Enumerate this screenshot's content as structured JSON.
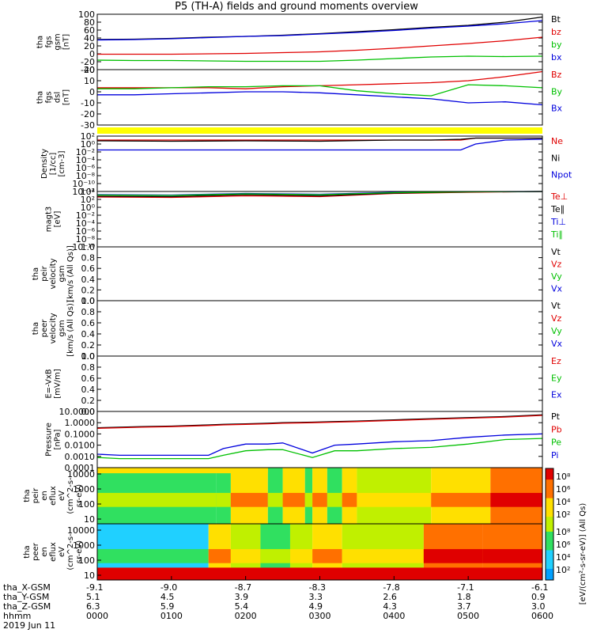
{
  "title": "P5 (TH-A) fields and ground moments overview",
  "colors": {
    "black": "#000000",
    "red": "#e00000",
    "green": "#00c000",
    "blue": "#0000dd",
    "yellow": "#ffff00"
  },
  "chart_data": [
    {
      "id": "fgs_gsm",
      "type": "line",
      "ylabel": [
        "tha",
        "fgs",
        "gsm",
        "[nT]"
      ],
      "ylim": [
        -40,
        100
      ],
      "yticks": [
        "100",
        "80",
        "60",
        "40",
        "20",
        "0",
        "-20",
        "-40"
      ],
      "legend": [
        {
          "name": "Bt",
          "color": "black"
        },
        {
          "name": "bz",
          "color": "red"
        },
        {
          "name": "by",
          "color": "green"
        },
        {
          "name": "bx",
          "color": "blue"
        }
      ],
      "x": [
        0,
        0.5,
        1,
        1.5,
        2,
        2.5,
        3,
        3.5,
        4,
        4.5,
        5,
        5.5,
        6
      ],
      "series": [
        {
          "name": "Bt",
          "color": "black",
          "values": [
            36,
            37,
            39,
            42,
            44,
            47,
            51,
            56,
            61,
            67,
            72,
            80,
            93
          ]
        },
        {
          "name": "bz",
          "color": "red",
          "values": [
            -1,
            -1,
            -1,
            0,
            1,
            3,
            5,
            9,
            14,
            20,
            26,
            33,
            42
          ]
        },
        {
          "name": "by",
          "color": "green",
          "values": [
            -16,
            -17,
            -17,
            -18,
            -19,
            -19,
            -19,
            -16,
            -12,
            -8,
            -6,
            -7,
            -6
          ]
        },
        {
          "name": "bx",
          "color": "blue",
          "values": [
            35,
            36,
            38,
            41,
            44,
            46,
            50,
            54,
            59,
            65,
            70,
            76,
            84
          ]
        }
      ]
    },
    {
      "id": "fgs_dsl",
      "type": "line",
      "ylabel": [
        "tha",
        "fgs",
        "dsl",
        "[nT]"
      ],
      "ylim": [
        -35,
        20
      ],
      "yticks": [
        "20",
        "10",
        "0",
        "-10",
        "-20",
        "-30"
      ],
      "legend": [
        {
          "name": "Bz",
          "color": "red"
        },
        {
          "name": "By",
          "color": "green"
        },
        {
          "name": "Bx",
          "color": "blue"
        }
      ],
      "x": [
        0,
        0.5,
        1,
        1.5,
        2,
        2.5,
        3,
        3.5,
        4,
        4.5,
        5,
        5.5,
        6
      ],
      "series": [
        {
          "name": "Bz",
          "color": "red",
          "values": [
            2,
            2,
            2,
            2,
            1,
            3,
            4,
            5,
            6,
            7,
            9,
            13,
            18
          ]
        },
        {
          "name": "By",
          "color": "green",
          "values": [
            1,
            1,
            2,
            3,
            3,
            4,
            4,
            -1,
            -4,
            -6,
            5,
            4,
            2
          ]
        },
        {
          "name": "Bx",
          "color": "blue",
          "values": [
            -5,
            -5,
            -4,
            -3,
            -2,
            -2,
            -3,
            -5,
            -7,
            -9,
            -13,
            -12,
            -15
          ]
        }
      ]
    },
    {
      "id": "density",
      "type": "line",
      "scale": "log",
      "ylabel": [
        "Density",
        "[1/cc]",
        "[cm-3]"
      ],
      "ylim": [
        -12,
        2
      ],
      "yticks": [
        "10²",
        "10⁰",
        "10⁻²",
        "10⁻⁴",
        "10⁻⁶",
        "10⁻⁸",
        "10⁻¹⁰",
        "10⁻¹²"
      ],
      "legend": [
        {
          "name": "Ne",
          "color": "red"
        },
        {
          "name": "Ni",
          "color": "black"
        },
        {
          "name": "Npot",
          "color": "blue"
        }
      ],
      "x": [
        0,
        1,
        2,
        3,
        4,
        4.5,
        4.9,
        5.1,
        5.5,
        6
      ],
      "series": [
        {
          "name": "Ne",
          "color": "red",
          "values": [
            1,
            1,
            1,
            1,
            1,
            1,
            1,
            1.5,
            1.5,
            1.5
          ]
        },
        {
          "name": "Ni",
          "color": "black",
          "values": [
            0.8,
            0.7,
            0.8,
            0.7,
            1,
            1,
            1.2,
            1.5,
            1.5,
            1.5
          ]
        },
        {
          "name": "Npot",
          "color": "blue",
          "values": [
            -1.5,
            -1.5,
            -1.5,
            -1.5,
            -1.5,
            -1.5,
            -1.5,
            0,
            1,
            1.2
          ]
        }
      ]
    },
    {
      "id": "temperature",
      "type": "line",
      "scale": "log",
      "ylabel": [
        "magt3",
        "[eV]"
      ],
      "ylim": [
        -10,
        4
      ],
      "yticks": [
        "10⁴",
        "10²",
        "10⁰",
        "10⁻²",
        "10⁻⁴",
        "10⁻⁶",
        "10⁻⁸",
        "10⁻¹⁰"
      ],
      "legend": [
        {
          "name": "Te⊥",
          "color": "red"
        },
        {
          "name": "Te∥",
          "color": "black"
        },
        {
          "name": "Ti⊥",
          "color": "blue"
        },
        {
          "name": "Ti∥",
          "color": "green"
        }
      ],
      "x": [
        0,
        1,
        2,
        3,
        4,
        5,
        6
      ],
      "series": [
        {
          "name": "Te⊥",
          "color": "red",
          "values": [
            2.6,
            2.5,
            2.9,
            2.7,
            3.5,
            3.8,
            4
          ]
        },
        {
          "name": "Te∥",
          "color": "black",
          "values": [
            2.8,
            2.7,
            3.2,
            2.9,
            3.6,
            3.9,
            4
          ]
        },
        {
          "name": "Ti⊥",
          "color": "blue",
          "values": [
            3.2,
            3.1,
            3.5,
            3.3,
            3.8,
            3.95,
            4
          ]
        },
        {
          "name": "Ti∥",
          "color": "green",
          "values": [
            3.1,
            3,
            3.4,
            3.2,
            3.7,
            3.9,
            4
          ]
        }
      ]
    },
    {
      "id": "peir_velocity",
      "type": "line",
      "ylabel": [
        "tha",
        "peir",
        "velocity",
        "gsm",
        "[km/s (All Qs)]"
      ],
      "ylim": [
        0,
        1
      ],
      "yticks": [
        "1.0",
        "0.8",
        "0.6",
        "0.4",
        "0.2",
        "0.0"
      ],
      "legend": [
        {
          "name": "Vt",
          "color": "black"
        },
        {
          "name": "Vz",
          "color": "red"
        },
        {
          "name": "Vy",
          "color": "green"
        },
        {
          "name": "Vx",
          "color": "blue"
        }
      ],
      "series": []
    },
    {
      "id": "peer_velocity",
      "type": "line",
      "ylabel": [
        "tha",
        "peer",
        "velocity",
        "gsm",
        "[km/s (All Qs)]"
      ],
      "ylim": [
        0,
        1
      ],
      "yticks": [
        "1.0",
        "0.8",
        "0.6",
        "0.4",
        "0.2",
        "0.0"
      ],
      "legend": [
        {
          "name": "Vt",
          "color": "black"
        },
        {
          "name": "Vz",
          "color": "red"
        },
        {
          "name": "Vy",
          "color": "green"
        },
        {
          "name": "Vx",
          "color": "blue"
        }
      ],
      "series": []
    },
    {
      "id": "efield",
      "type": "line",
      "ylabel": [
        "E=-VxB",
        "[mV/m]"
      ],
      "ylim": [
        0,
        1
      ],
      "yticks": [
        "1.0",
        "0.8",
        "0.6",
        "0.4",
        "0.2",
        "0.0"
      ],
      "legend": [
        {
          "name": "Ez",
          "color": "red"
        },
        {
          "name": "Ey",
          "color": "green"
        },
        {
          "name": "Ex",
          "color": "blue"
        }
      ],
      "series": []
    },
    {
      "id": "pressure",
      "type": "line",
      "scale": "log",
      "ylabel": [
        "Pressure",
        "[nPa]"
      ],
      "ylim": [
        -4,
        1
      ],
      "yticks": [
        "10.0000",
        "1.0000",
        "0.1000",
        "0.0100",
        "0.0010",
        "0.0001"
      ],
      "legend": [
        {
          "name": "Pt",
          "color": "black"
        },
        {
          "name": "Pb",
          "color": "red"
        },
        {
          "name": "Pe",
          "color": "green"
        },
        {
          "name": "Pi",
          "color": "blue"
        }
      ],
      "x": [
        0,
        0.3,
        0.6,
        1,
        1.5,
        1.7,
        2,
        2.3,
        2.5,
        2.9,
        3.2,
        3.5,
        4,
        4.5,
        5,
        5.5,
        6
      ],
      "series": [
        {
          "name": "Pt",
          "color": "black",
          "values": [
            -0.45,
            -0.4,
            -0.35,
            -0.3,
            -0.2,
            -0.15,
            -0.1,
            -0.05,
            0,
            0.05,
            0.1,
            0.15,
            0.25,
            0.35,
            0.45,
            0.55,
            0.7
          ]
        },
        {
          "name": "Pb",
          "color": "red",
          "values": [
            -0.5,
            -0.45,
            -0.4,
            -0.35,
            -0.25,
            -0.2,
            -0.15,
            -0.1,
            -0.05,
            0,
            0.05,
            0.1,
            0.2,
            0.3,
            0.4,
            0.5,
            0.65
          ]
        },
        {
          "name": "Pe",
          "color": "green",
          "values": [
            -3.1,
            -3.2,
            -3.2,
            -3.2,
            -3.2,
            -2.9,
            -2.5,
            -2.4,
            -2.4,
            -3.1,
            -2.5,
            -2.5,
            -2.3,
            -2.2,
            -1.9,
            -1.5,
            -1.4
          ]
        },
        {
          "name": "Pi",
          "color": "blue",
          "values": [
            -2.8,
            -2.9,
            -2.9,
            -2.9,
            -2.9,
            -2.3,
            -1.9,
            -1.9,
            -1.8,
            -2.7,
            -2.0,
            -1.9,
            -1.7,
            -1.6,
            -1.3,
            -1.1,
            -1.0
          ]
        }
      ]
    },
    {
      "id": "peir_en_eflux",
      "type": "heatmap",
      "ylabel": [
        "tha",
        "peir",
        "en",
        "eflux",
        "eV",
        "(cm^2-s-",
        "sr-eV)"
      ],
      "yticks": [
        "10000",
        "1000",
        "100",
        "10"
      ],
      "x_edges": [
        0,
        1.6,
        1.8,
        2.3,
        2.5,
        2.8,
        2.9,
        3.1,
        3.3,
        3.5,
        4.5,
        5.3,
        6
      ],
      "levels": [
        2,
        2,
        4,
        2,
        4,
        2,
        4,
        2,
        4,
        3,
        4,
        5
      ]
    },
    {
      "id": "peer_en_eflux",
      "type": "heatmap",
      "ylabel": [
        "tha",
        "peer",
        "en",
        "eflux",
        "eV",
        "(cm^2-s-",
        "sr-eV)"
      ],
      "yticks": [
        "10000",
        "1000",
        "100",
        "10"
      ],
      "x_edges": [
        0,
        1.5,
        1.8,
        2.2,
        2.6,
        2.9,
        3.3,
        4.4,
        5.2,
        6
      ],
      "levels": [
        1,
        4,
        3,
        2,
        3,
        4,
        3,
        5,
        5
      ]
    }
  ],
  "colorbar": {
    "label": "[eV/(cm²-s-sr-eV)] (All Qs)",
    "ticks_top": [
      "10⁸",
      "10⁶",
      "10⁴",
      "10²"
    ],
    "ticks_bottom": [
      "10⁸",
      "10⁶",
      "10⁴",
      "10²"
    ]
  },
  "footer": {
    "rows": [
      {
        "label": "tha_X-GSM",
        "values": [
          "-9.1",
          "-9.0",
          "-8.7",
          "-8.3",
          "-7.8",
          "-7.1",
          "-6.1"
        ]
      },
      {
        "label": "tha_Y-GSM",
        "values": [
          "5.1",
          "4.5",
          "3.9",
          "3.3",
          "2.6",
          "1.8",
          "0.9"
        ]
      },
      {
        "label": "tha_Z-GSM",
        "values": [
          "6.3",
          "5.9",
          "5.4",
          "4.9",
          "4.3",
          "3.7",
          "3.0"
        ]
      },
      {
        "label": "hhmm",
        "values": [
          "0000",
          "0100",
          "0200",
          "0300",
          "0400",
          "0500",
          "0600"
        ]
      }
    ],
    "date": "2019 Jun 11"
  }
}
